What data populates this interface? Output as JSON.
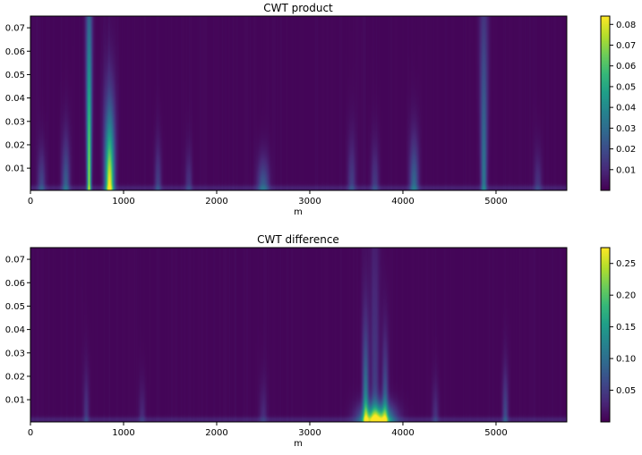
{
  "chart_data": [
    {
      "type": "heatmap",
      "title": "CWT product",
      "xlabel": "m",
      "ylabel": "",
      "xlim": [
        0,
        5760
      ],
      "ylim": [
        0.0005,
        0.075
      ],
      "x_ticks": [
        0,
        1000,
        2000,
        3000,
        4000,
        5000
      ],
      "x_tick_labels": [
        "0",
        "1000",
        "2000",
        "3000",
        "4000",
        "5000"
      ],
      "y_ticks": [
        0.01,
        0.02,
        0.03,
        0.04,
        0.05,
        0.06,
        0.07
      ],
      "y_tick_labels": [
        "0.01",
        "0.02",
        "0.03",
        "0.04",
        "0.05",
        "0.06",
        "0.07"
      ],
      "colormap": "viridis",
      "colorbar": {
        "range": [
          0.0,
          0.084
        ],
        "ticks": [
          0.01,
          0.02,
          0.03,
          0.04,
          0.05,
          0.06,
          0.07,
          0.08
        ],
        "tick_labels": [
          "0.01",
          "0.02",
          "0.03",
          "0.04",
          "0.05",
          "0.06",
          "0.07",
          "0.08"
        ]
      },
      "features": [
        {
          "x": 630,
          "peak": 0.07,
          "width": 22,
          "height": 0.075
        },
        {
          "x": 850,
          "peak": 0.084,
          "width": 45,
          "height": 0.03
        },
        {
          "x": 380,
          "peak": 0.025,
          "width": 40,
          "height": 0.02
        },
        {
          "x": 120,
          "peak": 0.018,
          "width": 40,
          "height": 0.015
        },
        {
          "x": 1370,
          "peak": 0.015,
          "width": 35,
          "height": 0.018
        },
        {
          "x": 1700,
          "peak": 0.012,
          "width": 35,
          "height": 0.015
        },
        {
          "x": 2500,
          "peak": 0.025,
          "width": 60,
          "height": 0.012
        },
        {
          "x": 3450,
          "peak": 0.015,
          "width": 40,
          "height": 0.02
        },
        {
          "x": 3700,
          "peak": 0.014,
          "width": 40,
          "height": 0.018
        },
        {
          "x": 4120,
          "peak": 0.028,
          "width": 45,
          "height": 0.02
        },
        {
          "x": 4870,
          "peak": 0.032,
          "width": 30,
          "height": 0.075
        },
        {
          "x": 5450,
          "peak": 0.012,
          "width": 40,
          "height": 0.015
        }
      ]
    },
    {
      "type": "heatmap",
      "title": "CWT difference",
      "xlabel": "m",
      "ylabel": "",
      "xlim": [
        0,
        5760
      ],
      "ylim": [
        0.0005,
        0.075
      ],
      "x_ticks": [
        0,
        1000,
        2000,
        3000,
        4000,
        5000
      ],
      "x_tick_labels": [
        "0",
        "1000",
        "2000",
        "3000",
        "4000",
        "5000"
      ],
      "y_ticks": [
        0.01,
        0.02,
        0.03,
        0.04,
        0.05,
        0.06,
        0.07
      ],
      "y_tick_labels": [
        "0.01",
        "0.02",
        "0.03",
        "0.04",
        "0.05",
        "0.06",
        "0.07"
      ],
      "colormap": "viridis",
      "colorbar": {
        "range": [
          0.0,
          0.275
        ],
        "ticks": [
          0.05,
          0.1,
          0.15,
          0.2,
          0.25
        ],
        "tick_labels": [
          "0.05",
          "0.10",
          "0.15",
          "0.20",
          "0.25"
        ]
      },
      "features": [
        {
          "x": 3720,
          "peak": 0.275,
          "width": 160,
          "height": 0.006
        },
        {
          "x": 3600,
          "peak": 0.13,
          "width": 28,
          "height": 0.035
        },
        {
          "x": 3810,
          "peak": 0.09,
          "width": 28,
          "height": 0.03
        },
        {
          "x": 3700,
          "peak": 0.05,
          "width": 35,
          "height": 0.075
        },
        {
          "x": 600,
          "peak": 0.04,
          "width": 30,
          "height": 0.02
        },
        {
          "x": 5100,
          "peak": 0.06,
          "width": 30,
          "height": 0.02
        },
        {
          "x": 1200,
          "peak": 0.03,
          "width": 35,
          "height": 0.015
        },
        {
          "x": 2500,
          "peak": 0.03,
          "width": 40,
          "height": 0.015
        },
        {
          "x": 4350,
          "peak": 0.035,
          "width": 35,
          "height": 0.015
        }
      ]
    }
  ]
}
